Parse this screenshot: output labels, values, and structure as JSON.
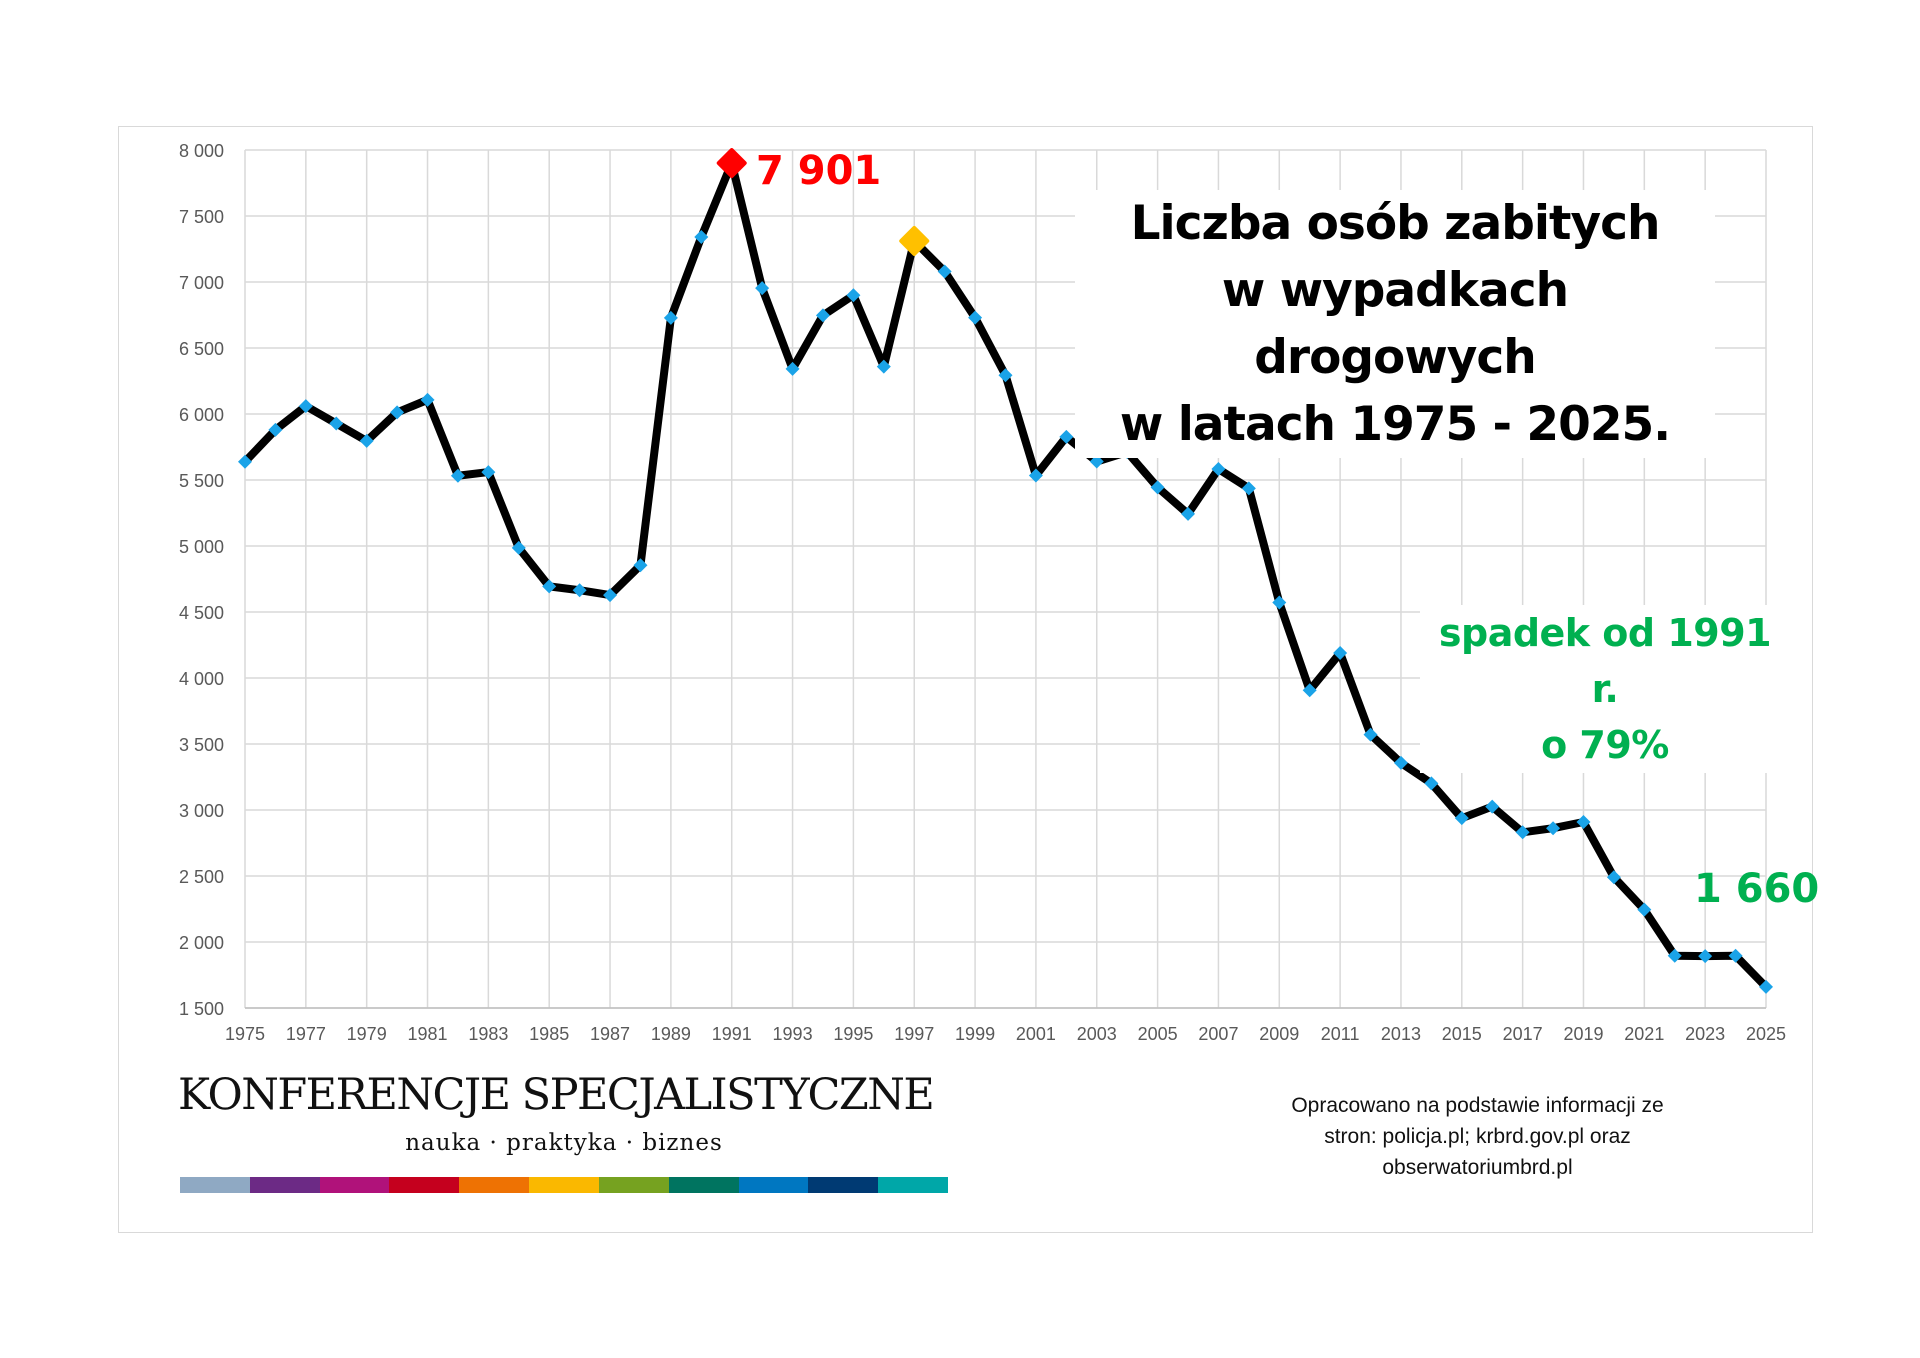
{
  "chart_data": {
    "type": "line",
    "title_lines": [
      "Liczba osób zabitych",
      "w wypadkach drogowych",
      "w latach 1975 - 2025."
    ],
    "x": [
      1975,
      1976,
      1977,
      1978,
      1979,
      1980,
      1981,
      1982,
      1983,
      1984,
      1985,
      1986,
      1987,
      1988,
      1989,
      1990,
      1991,
      1992,
      1993,
      1994,
      1995,
      1996,
      1997,
      1998,
      1999,
      2000,
      2001,
      2002,
      2003,
      2004,
      2005,
      2006,
      2007,
      2008,
      2009,
      2010,
      2011,
      2012,
      2013,
      2014,
      2015,
      2016,
      2017,
      2018,
      2019,
      2020,
      2021,
      2022,
      2023,
      2024,
      2025
    ],
    "series": [
      {
        "name": "Liczba osób zabitych",
        "values": [
          5638,
          5880,
          6060,
          5928,
          5796,
          6012,
          6107,
          5532,
          5560,
          4986,
          4694,
          4665,
          4628,
          4854,
          6728,
          7341,
          7901,
          6954,
          6342,
          6747,
          6900,
          6359,
          7311,
          7080,
          6730,
          6294,
          5534,
          5827,
          5640,
          5712,
          5444,
          5243,
          5583,
          5437,
          4572,
          3907,
          4189,
          3571,
          3357,
          3202,
          2938,
          3026,
          2831,
          2862,
          2909,
          2491,
          2245,
          1896,
          1893,
          1896,
          1660
        ],
        "line_color": "#000000",
        "marker_color": "#1aa3e8"
      }
    ],
    "highlights": [
      {
        "year": 1991,
        "value": 7901,
        "color": "#ff0000",
        "label": "7 901"
      },
      {
        "year": 1997,
        "value": 7311,
        "color": "#ffc000"
      }
    ],
    "ylim": [
      1500,
      8000
    ],
    "yticks": [
      1500,
      2000,
      2500,
      3000,
      3500,
      4000,
      4500,
      5000,
      5500,
      6000,
      6500,
      7000,
      7500,
      8000
    ],
    "ytick_labels": [
      "1 500",
      "2 000",
      "2 500",
      "3 000",
      "3 500",
      "4 000",
      "4 500",
      "5 000",
      "5 500",
      "6 000",
      "6 500",
      "7 000",
      "7 500",
      "8 000"
    ],
    "xtick_labels": [
      "1975",
      "1977",
      "1979",
      "1981",
      "1983",
      "1985",
      "1987",
      "1989",
      "1991",
      "1993",
      "1995",
      "1997",
      "1999",
      "2001",
      "2003",
      "2005",
      "2007",
      "2009",
      "2011",
      "2013",
      "2015",
      "2017",
      "2019",
      "2021",
      "2023",
      "2025"
    ],
    "grid": true,
    "annotations": {
      "peak": "7 901",
      "drop_lines": [
        "spadek od 1991 r.",
        "o 79%"
      ],
      "last": "1 660"
    }
  },
  "logo": {
    "name": "KONFERENCJE SPECJALISTYCZNE",
    "tagline": "nauka · praktyka · biznes",
    "bar_colors": [
      "#8fa9c3",
      "#6c2a85",
      "#b0127a",
      "#c5001e",
      "#ee7203",
      "#fab800",
      "#76a220",
      "#007460",
      "#0077c1",
      "#003a73",
      "#00a7a8"
    ]
  },
  "source_lines": [
    "Opracowano na podstawie informacji ze",
    "stron: policja.pl; krbrd.gov.pl oraz",
    "obserwatoriumbrd.pl"
  ]
}
